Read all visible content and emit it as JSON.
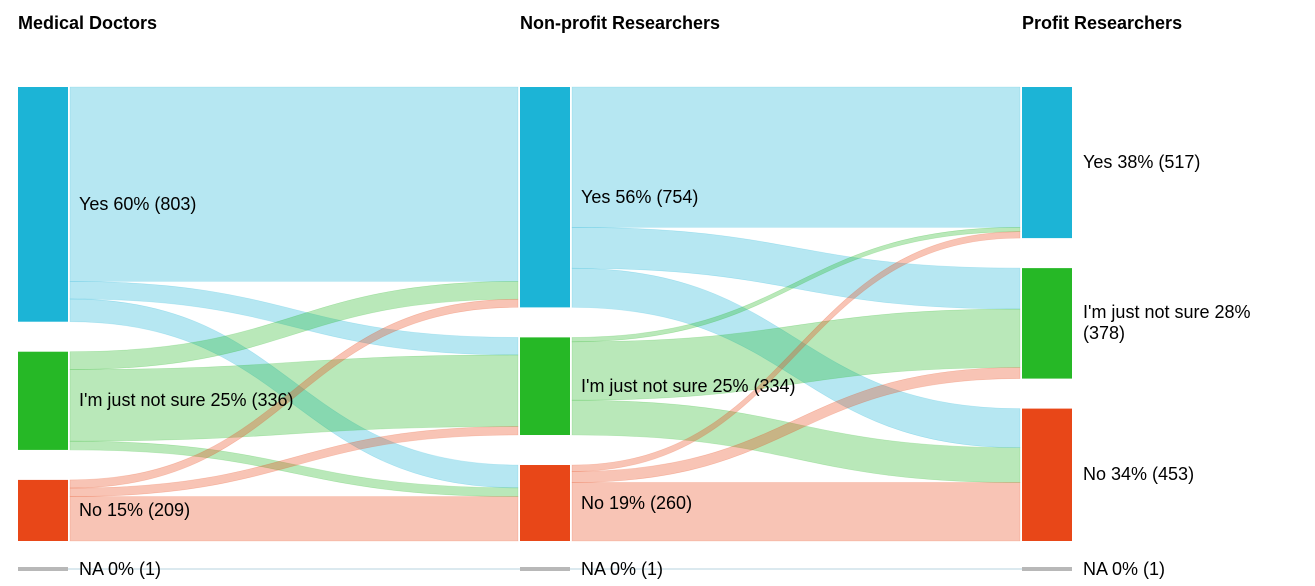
{
  "chart_data": {
    "type": "sankey",
    "title": "",
    "colors": {
      "Yes": "#1cb4d6",
      "I'm just not sure": "#26b826",
      "No": "#e84718",
      "NA": "#b8b8b8"
    },
    "columns": [
      {
        "title": "Medical Doctors",
        "nodes": [
          {
            "name": "Yes",
            "count": 803,
            "pct": 60,
            "label": "Yes 60% (803)"
          },
          {
            "name": "I'm just not sure",
            "count": 336,
            "pct": 25,
            "label": "I'm just not sure 25% (336)"
          },
          {
            "name": "No",
            "count": 209,
            "pct": 15,
            "label": "No 15% (209)"
          },
          {
            "name": "NA",
            "count": 1,
            "pct": 0,
            "label": "NA 0% (1)"
          }
        ]
      },
      {
        "title": "Non-profit Researchers",
        "nodes": [
          {
            "name": "Yes",
            "count": 754,
            "pct": 56,
            "label": "Yes 56% (754)"
          },
          {
            "name": "I'm just not sure",
            "count": 334,
            "pct": 25,
            "label": "I'm just not sure 25% (334)"
          },
          {
            "name": "No",
            "count": 260,
            "pct": 19,
            "label": "No 19% (260)"
          },
          {
            "name": "NA",
            "count": 1,
            "pct": 0,
            "label": "NA 0% (1)"
          }
        ]
      },
      {
        "title": "Profit Researchers",
        "nodes": [
          {
            "name": "Yes",
            "count": 517,
            "pct": 38,
            "label": "Yes 38% (517)"
          },
          {
            "name": "I'm just not sure",
            "count": 378,
            "pct": 28,
            "label": "I'm just not sure 28% (378)"
          },
          {
            "name": "No",
            "count": 453,
            "pct": 34,
            "label": "No 34% (453)"
          },
          {
            "name": "NA",
            "count": 1,
            "pct": 0,
            "label": "NA 0% (1)"
          }
        ]
      }
    ],
    "flows": [
      [
        [
          665,
          60,
          78,
          0
        ],
        [
          61,
          245,
          30,
          0
        ],
        [
          28,
          29,
          152,
          0
        ],
        [
          0,
          0,
          0,
          1
        ]
      ],
      [
        [
          480,
          140,
          134,
          0
        ],
        [
          15,
          200,
          119,
          0
        ],
        [
          22,
          38,
          200,
          0
        ],
        [
          0,
          0,
          0,
          1
        ]
      ]
    ]
  }
}
